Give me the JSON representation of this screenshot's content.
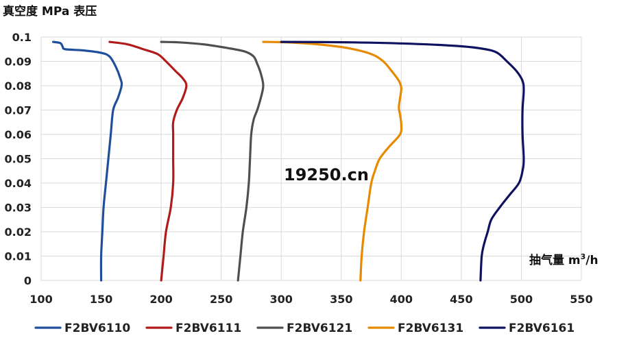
{
  "chart_data": {
    "type": "line",
    "title": "",
    "ylabel": "真空度 MPa 表压",
    "xlabel_main": "抽气量 m",
    "xlabel_sup": "3",
    "xlabel_tail": "/h",
    "watermark": "19250.cn",
    "xlim": [
      100,
      550
    ],
    "ylim": [
      0,
      0.1
    ],
    "x_ticks": [
      100,
      150,
      200,
      250,
      300,
      350,
      400,
      450,
      500,
      550
    ],
    "x_tick_labels": [
      "100",
      "150",
      "200",
      "250",
      "300",
      "350",
      "400",
      "450",
      "500",
      "550"
    ],
    "y_ticks": [
      0,
      0.01,
      0.02,
      0.03,
      0.04,
      0.05,
      0.06,
      0.07,
      0.08,
      0.09,
      0.1
    ],
    "y_tick_labels": [
      "0",
      "0.01",
      "0.02",
      "0.03",
      "0.04",
      "0.05",
      "0.06",
      "0.07",
      "0.08",
      "0.09",
      "0.1"
    ],
    "grid": "both",
    "legend_position": "bottom",
    "series": [
      {
        "name": "F2BV6110",
        "color": "#1f4e9b",
        "points": [
          [
            110,
            0.098
          ],
          [
            116,
            0.0975
          ],
          [
            118,
            0.096
          ],
          [
            120,
            0.095
          ],
          [
            135,
            0.0945
          ],
          [
            150,
            0.0935
          ],
          [
            157,
            0.092
          ],
          [
            162,
            0.088
          ],
          [
            166,
            0.083
          ],
          [
            167,
            0.08
          ],
          [
            164,
            0.075
          ],
          [
            160,
            0.07
          ],
          [
            158,
            0.06
          ],
          [
            156,
            0.05
          ],
          [
            154,
            0.04
          ],
          [
            152,
            0.03
          ],
          [
            151,
            0.02
          ],
          [
            150,
            0.01
          ],
          [
            150,
            0
          ]
        ]
      },
      {
        "name": "F2BV6111",
        "color": "#b01c1c",
        "points": [
          [
            157,
            0.098
          ],
          [
            172,
            0.097
          ],
          [
            185,
            0.095
          ],
          [
            197,
            0.093
          ],
          [
            204,
            0.09
          ],
          [
            212,
            0.086
          ],
          [
            218,
            0.083
          ],
          [
            221,
            0.08
          ],
          [
            218,
            0.075
          ],
          [
            213,
            0.07
          ],
          [
            210,
            0.065
          ],
          [
            210,
            0.06
          ],
          [
            210,
            0.05
          ],
          [
            210,
            0.04
          ],
          [
            208,
            0.03
          ],
          [
            204,
            0.02
          ],
          [
            202,
            0.01
          ],
          [
            200,
            0
          ]
        ]
      },
      {
        "name": "F2BV6121",
        "color": "#4f4f4f",
        "points": [
          [
            200,
            0.098
          ],
          [
            215,
            0.0978
          ],
          [
            235,
            0.097
          ],
          [
            255,
            0.0955
          ],
          [
            270,
            0.094
          ],
          [
            277,
            0.092
          ],
          [
            280,
            0.089
          ],
          [
            283,
            0.085
          ],
          [
            285,
            0.08
          ],
          [
            283,
            0.075
          ],
          [
            280,
            0.07
          ],
          [
            277,
            0.066
          ],
          [
            275,
            0.06
          ],
          [
            274,
            0.05
          ],
          [
            273,
            0.04
          ],
          [
            271,
            0.03
          ],
          [
            268,
            0.02
          ],
          [
            266,
            0.01
          ],
          [
            264,
            0
          ]
        ]
      },
      {
        "name": "F2BV6131",
        "color": "#e68a00",
        "points": [
          [
            285,
            0.098
          ],
          [
            305,
            0.0978
          ],
          [
            330,
            0.097
          ],
          [
            355,
            0.0955
          ],
          [
            375,
            0.093
          ],
          [
            385,
            0.09
          ],
          [
            392,
            0.086
          ],
          [
            398,
            0.082
          ],
          [
            400,
            0.079
          ],
          [
            399,
            0.075
          ],
          [
            398,
            0.071
          ],
          [
            399,
            0.068
          ],
          [
            400,
            0.064
          ],
          [
            399,
            0.06
          ],
          [
            390,
            0.055
          ],
          [
            382,
            0.05
          ],
          [
            378,
            0.045
          ],
          [
            375,
            0.04
          ],
          [
            372,
            0.03
          ],
          [
            369,
            0.02
          ],
          [
            367,
            0.01
          ],
          [
            366,
            0
          ]
        ]
      },
      {
        "name": "F2BV6161",
        "color": "#0e1260",
        "points": [
          [
            300,
            0.098
          ],
          [
            360,
            0.0978
          ],
          [
            410,
            0.0972
          ],
          [
            450,
            0.0962
          ],
          [
            470,
            0.095
          ],
          [
            480,
            0.0935
          ],
          [
            488,
            0.09
          ],
          [
            496,
            0.086
          ],
          [
            501,
            0.082
          ],
          [
            502,
            0.078
          ],
          [
            501,
            0.07
          ],
          [
            501,
            0.06
          ],
          [
            502,
            0.05
          ],
          [
            501,
            0.045
          ],
          [
            498,
            0.04
          ],
          [
            490,
            0.035
          ],
          [
            482,
            0.03
          ],
          [
            475,
            0.025
          ],
          [
            472,
            0.02
          ],
          [
            469,
            0.015
          ],
          [
            467,
            0.01
          ],
          [
            466,
            0
          ]
        ]
      }
    ]
  }
}
